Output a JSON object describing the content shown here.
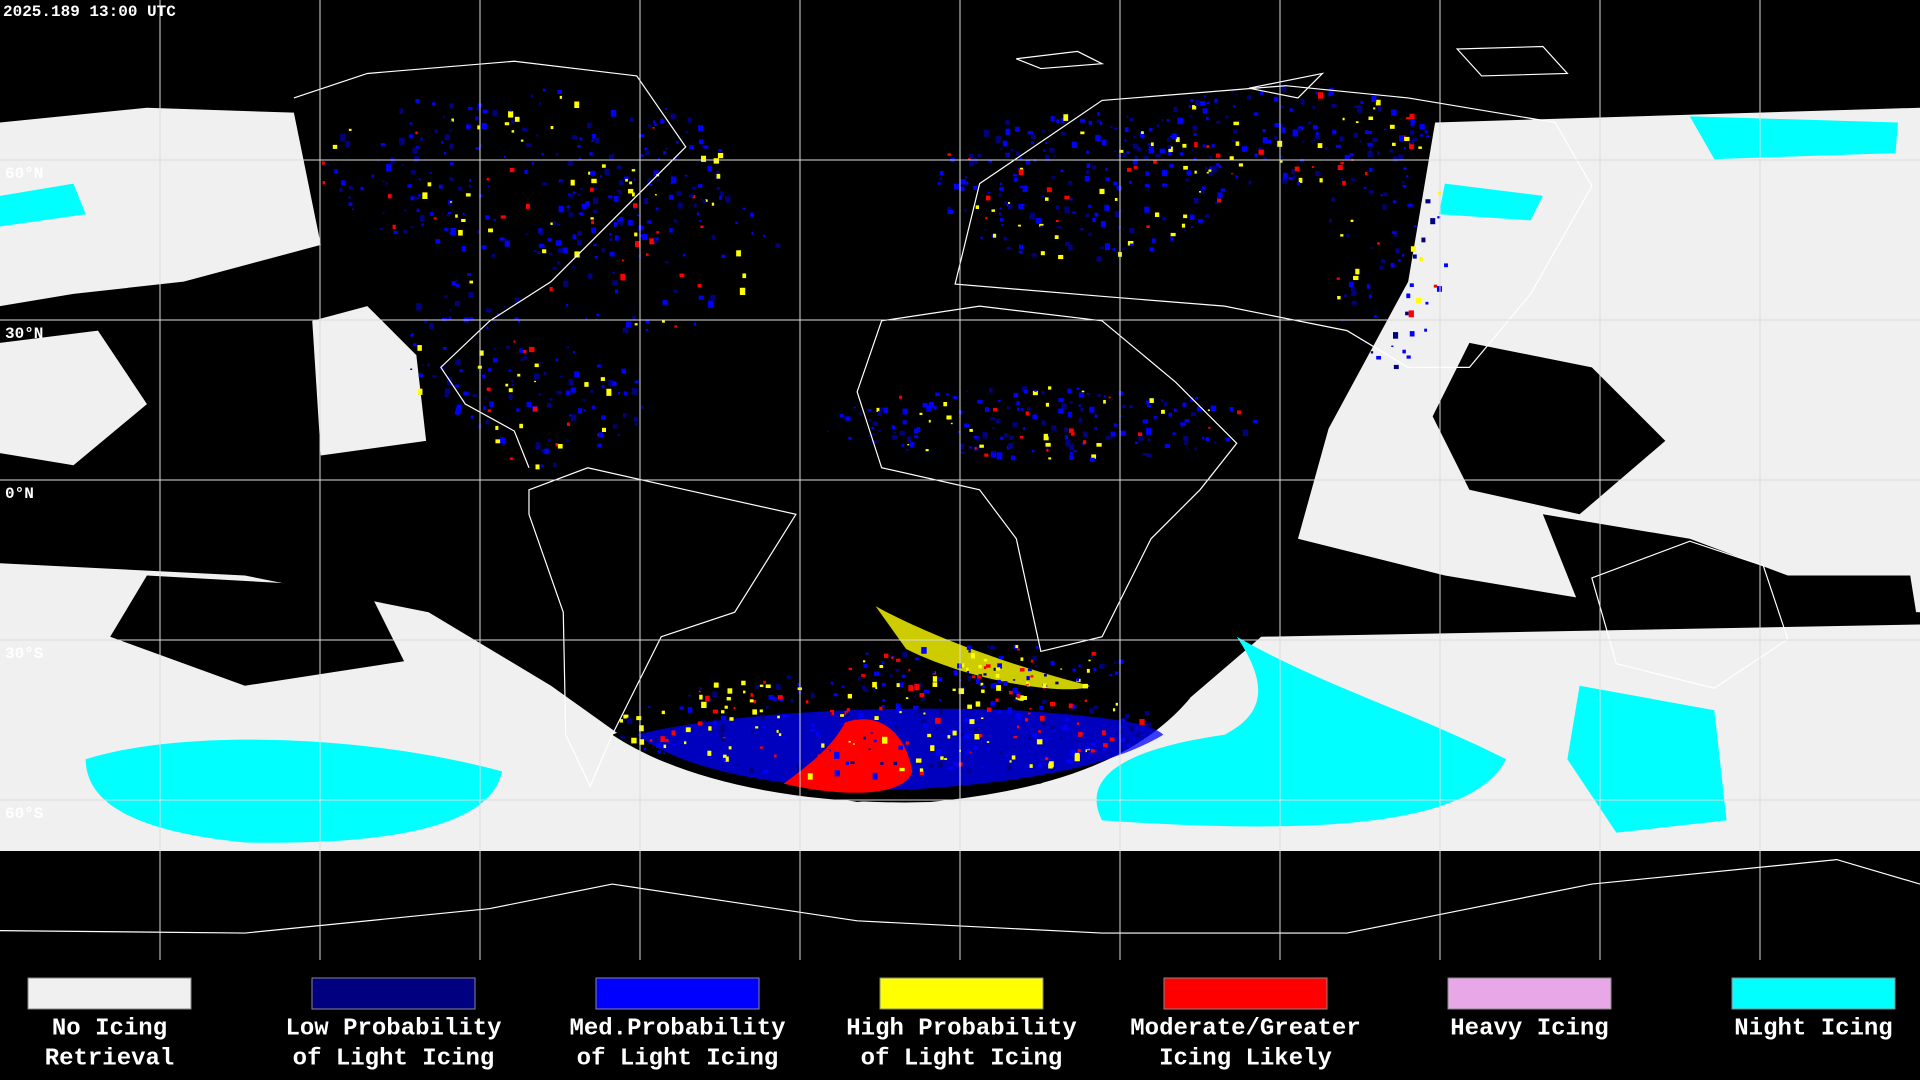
{
  "timestamp": "2025.189 13:00 UTC",
  "map": {
    "latitude_labels": [
      "60°N",
      "30°N",
      "0°N",
      "30°S",
      "60°S"
    ]
  },
  "legend": {
    "items": [
      {
        "label_lines": [
          "No Icing",
          "Retrieval"
        ],
        "color": "#f0f0f0"
      },
      {
        "label_lines": [
          "Low Probability",
          "of Light Icing"
        ],
        "color": "#000080"
      },
      {
        "label_lines": [
          "Med.Probability",
          "of Light Icing"
        ],
        "color": "#0000ff"
      },
      {
        "label_lines": [
          "High Probability",
          "of Light Icing"
        ],
        "color": "#ffff00"
      },
      {
        "label_lines": [
          "Moderate/Greater",
          "Icing Likely"
        ],
        "color": "#ff0000"
      },
      {
        "label_lines": [
          "Heavy Icing"
        ],
        "color": "#e8a8e8"
      },
      {
        "label_lines": [
          "Night Icing"
        ],
        "color": "#00ffff"
      }
    ]
  }
}
